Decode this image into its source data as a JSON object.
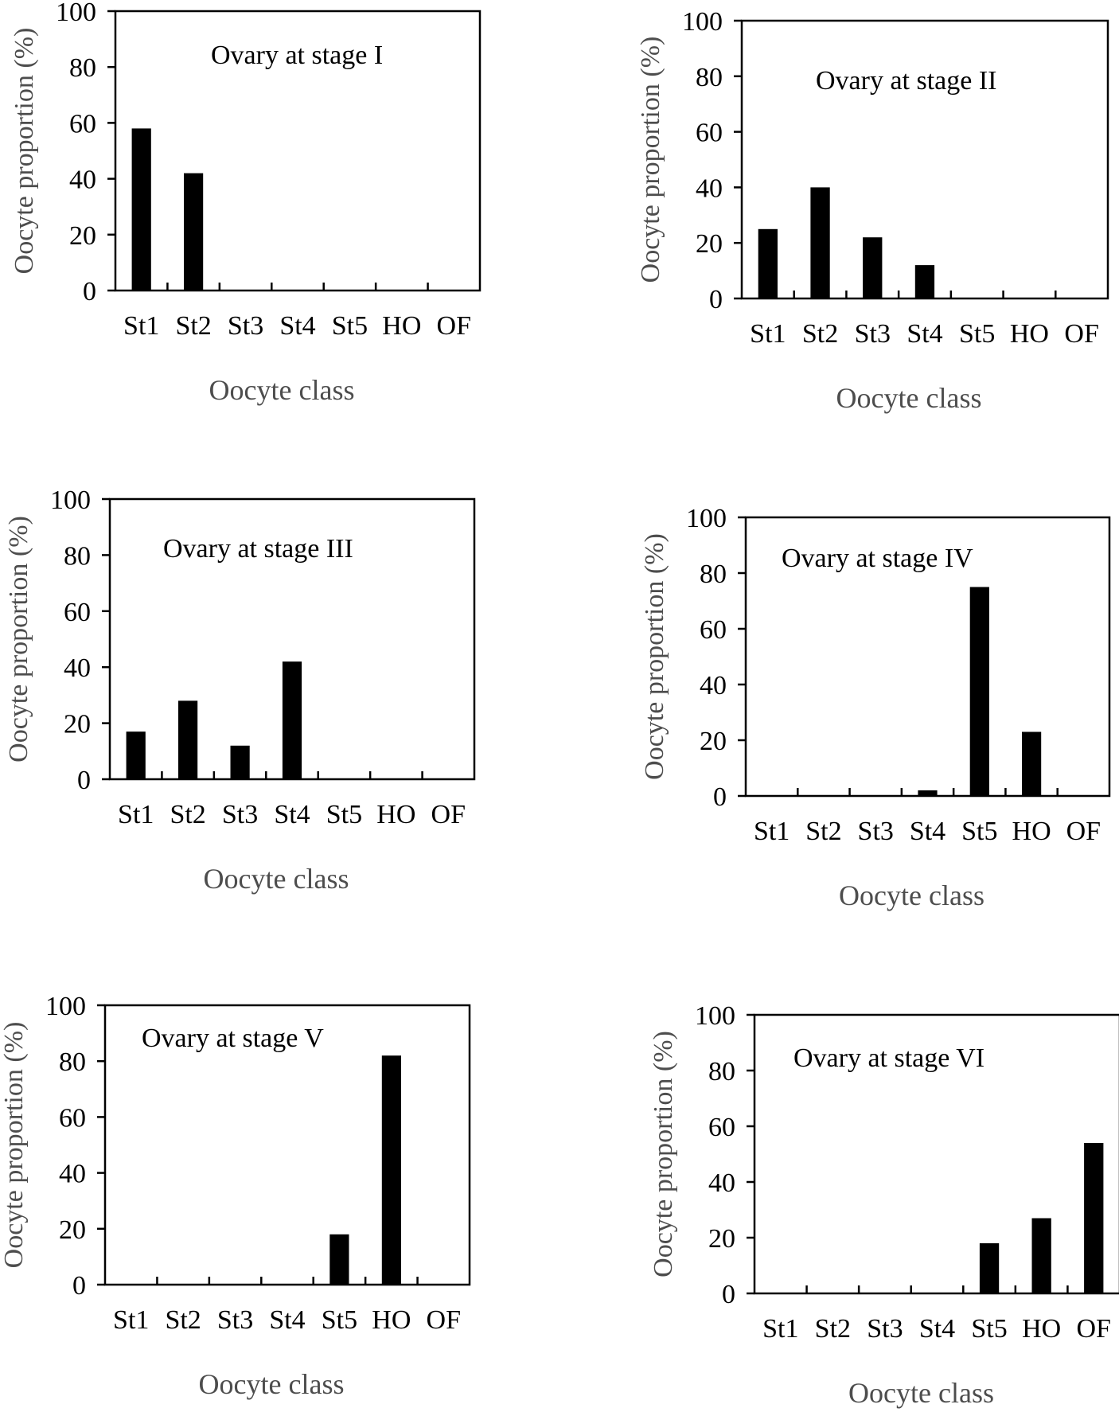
{
  "chart_data": [
    {
      "type": "bar",
      "title": "Ovary at stage I",
      "xlabel": "Oocyte class",
      "ylabel": "Oocyte proportion  (%)",
      "categories": [
        "St1",
        "St2",
        "St3",
        "St4",
        "St5",
        "HO",
        "OF"
      ],
      "values": [
        58,
        42,
        0,
        0,
        0,
        0,
        0
      ],
      "ylim": [
        0,
        100
      ],
      "yticks": [
        "0",
        "20",
        "40",
        "60",
        "80",
        "100"
      ],
      "grid": false,
      "bar_color": "#000000"
    },
    {
      "type": "bar",
      "title": "Ovary at stage II",
      "xlabel": "Oocyte class",
      "ylabel": "Oocyte proportion  (%)",
      "categories": [
        "St1",
        "St2",
        "St3",
        "St4",
        "St5",
        "HO",
        "OF"
      ],
      "values": [
        25,
        40,
        22,
        12,
        0,
        0,
        0
      ],
      "ylim": [
        0,
        100
      ],
      "yticks": [
        "0",
        "20",
        "40",
        "60",
        "80",
        "100"
      ],
      "grid": false,
      "bar_color": "#000000"
    },
    {
      "type": "bar",
      "title": "Ovary at stage III",
      "xlabel": "Oocyte class",
      "ylabel": "Oocyte proportion  (%)",
      "categories": [
        "St1",
        "St2",
        "St3",
        "St4",
        "St5",
        "HO",
        "OF"
      ],
      "values": [
        17,
        28,
        12,
        42,
        0,
        0,
        0
      ],
      "ylim": [
        0,
        100
      ],
      "yticks": [
        "0",
        "20",
        "40",
        "60",
        "80",
        "100"
      ],
      "grid": false,
      "bar_color": "#000000"
    },
    {
      "type": "bar",
      "title": "Ovary at stage IV",
      "xlabel": "Oocyte class",
      "ylabel": "Oocyte proportion  (%)",
      "categories": [
        "St1",
        "St2",
        "St3",
        "St4",
        "St5",
        "HO",
        "OF"
      ],
      "values": [
        0,
        0,
        0,
        2,
        75,
        23,
        0
      ],
      "ylim": [
        0,
        100
      ],
      "yticks": [
        "0",
        "20",
        "40",
        "60",
        "80",
        "100"
      ],
      "grid": false,
      "bar_color": "#000000"
    },
    {
      "type": "bar",
      "title": "Ovary at stage V",
      "xlabel": "Oocyte class",
      "ylabel": "Oocyte proportion  (%)",
      "categories": [
        "St1",
        "St2",
        "St3",
        "St4",
        "St5",
        "HO",
        "OF"
      ],
      "values": [
        0,
        0,
        0,
        0,
        18,
        82,
        0
      ],
      "ylim": [
        0,
        100
      ],
      "yticks": [
        "0",
        "20",
        "40",
        "60",
        "80",
        "100"
      ],
      "grid": false,
      "bar_color": "#000000"
    },
    {
      "type": "bar",
      "title": "Ovary at stage VI",
      "xlabel": "Oocyte class",
      "ylabel": "Oocyte proportion  (%)",
      "categories": [
        "St1",
        "St2",
        "St3",
        "St4",
        "St5",
        "HO",
        "OF"
      ],
      "values": [
        0,
        0,
        0,
        0,
        18,
        27,
        54
      ],
      "ylim": [
        0,
        100
      ],
      "yticks": [
        "0",
        "20",
        "40",
        "60",
        "80",
        "100"
      ],
      "grid": false,
      "bar_color": "#000000"
    }
  ]
}
